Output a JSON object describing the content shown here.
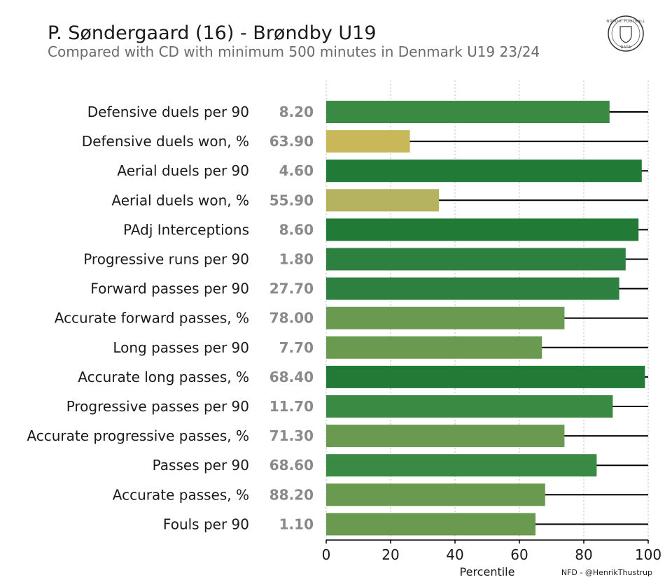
{
  "header": {
    "title": "P. Søndergaard (16) - Brøndby U19",
    "subtitle": "Compared with CD with minimum 500 minutes in Denmark U19 23/24"
  },
  "logo": {
    "top_text": "NORDIC FOOTBALL",
    "bottom_text": "DATA"
  },
  "footer": {
    "credit": "NFD - @HenrikThustrup"
  },
  "colors": {
    "high": "#217a36",
    "mid_high": "#3b8a43",
    "mid": "#6a9a50",
    "low_mid": "#b5b35f",
    "low": "#c9b85a",
    "axis": "#000000",
    "grid": "#bbbbbb"
  },
  "chart_data": {
    "type": "bar",
    "orientation": "horizontal",
    "categories": [
      "Defensive duels per 90",
      "Defensive duels won, %",
      "Aerial duels per 90",
      "Aerial duels won, %",
      "PAdj Interceptions",
      "Progressive runs per 90",
      "Forward passes per 90",
      "Accurate forward passes, %",
      "Long passes per 90",
      "Accurate long passes, %",
      "Progressive passes per 90",
      "Accurate progressive passes, %",
      "Passes per 90",
      "Accurate passes, %",
      "Fouls per 90"
    ],
    "raw_values": [
      "8.20",
      "63.90",
      "4.60",
      "55.90",
      "8.60",
      "1.80",
      "27.70",
      "78.00",
      "7.70",
      "68.40",
      "11.70",
      "71.30",
      "68.60",
      "88.20",
      "1.10"
    ],
    "percentiles": [
      88,
      26,
      98,
      35,
      97,
      93,
      91,
      74,
      67,
      99,
      89,
      74,
      84,
      68,
      65
    ],
    "bar_colors": [
      "#3b8a43",
      "#c9b85a",
      "#217a36",
      "#b5b35f",
      "#217a36",
      "#2e8040",
      "#2e8040",
      "#6a9a50",
      "#6a9a50",
      "#217a36",
      "#3b8a43",
      "#6a9a50",
      "#3b8a43",
      "#6a9a50",
      "#6a9a50"
    ],
    "xlabel": "Percentile",
    "xlim": [
      0,
      100
    ],
    "xticks": [
      0,
      20,
      40,
      60,
      80,
      100
    ],
    "grid": true
  }
}
